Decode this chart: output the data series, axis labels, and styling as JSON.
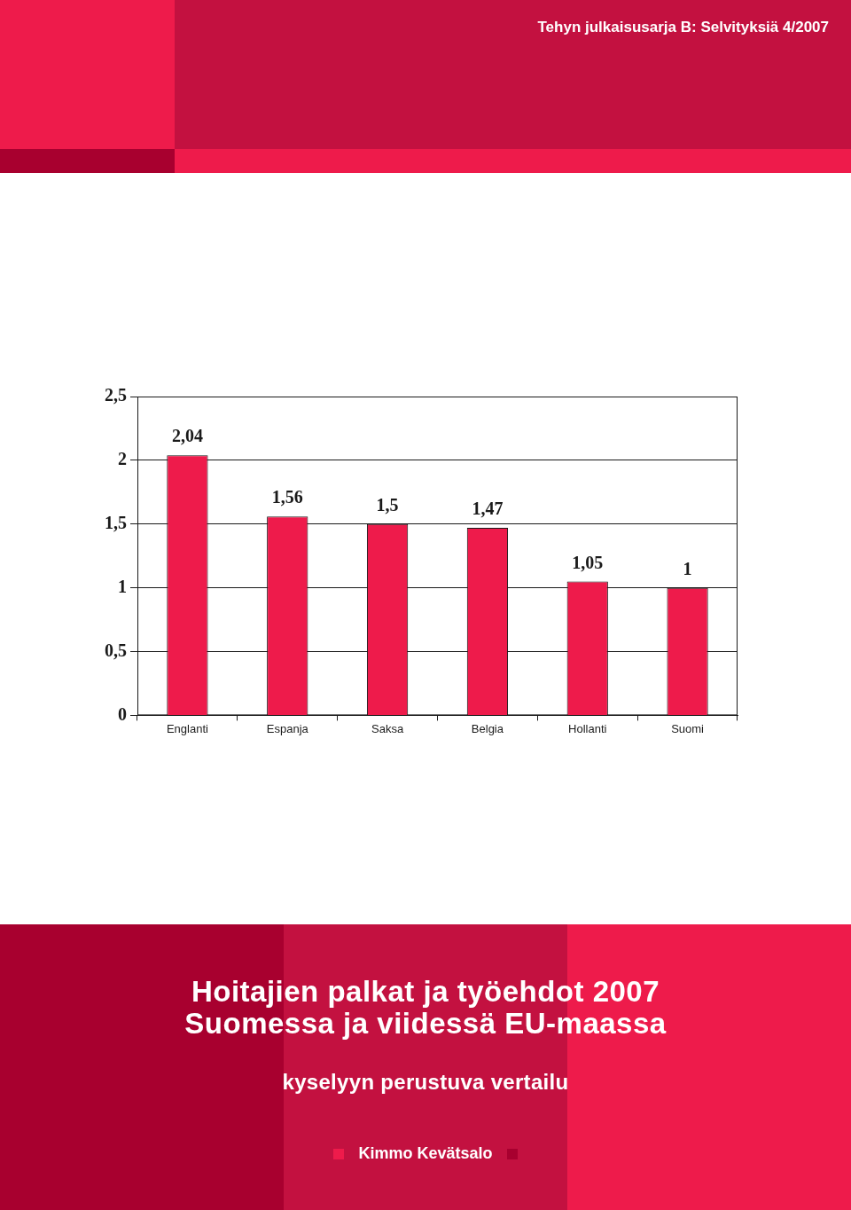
{
  "chart_data": {
    "type": "bar",
    "title": "Hoitajien palkat ja työehdot 2007\nSuomessa ja viidessä EU-maassa",
    "subtitle": "kyselyyn perustuva vertailu",
    "annotations": [
      "Tehyn julkaisusarja B: Selvityksiä 4/2007",
      "Kimmo Kevätsalo"
    ],
    "categories": [
      "Englanti",
      "Espanja",
      "Saksa",
      "Belgia",
      "Hollanti",
      "Suomi"
    ],
    "values": [
      2.04,
      1.56,
      1.5,
      1.47,
      1.05,
      1
    ],
    "value_labels": [
      "2,04",
      "1,56",
      "1,5",
      "1,47",
      "1,05",
      "1"
    ],
    "color": "#ee1b4b",
    "ylim": [
      0,
      2.5
    ],
    "yticks": [
      0,
      {
        "value": 0.5,
        "label": "0,5"
      },
      1,
      {
        "value": 1.5,
        "label": "1,5"
      },
      2,
      {
        "value": 2.5,
        "label": "2,5"
      }
    ],
    "grid": "y"
  }
}
